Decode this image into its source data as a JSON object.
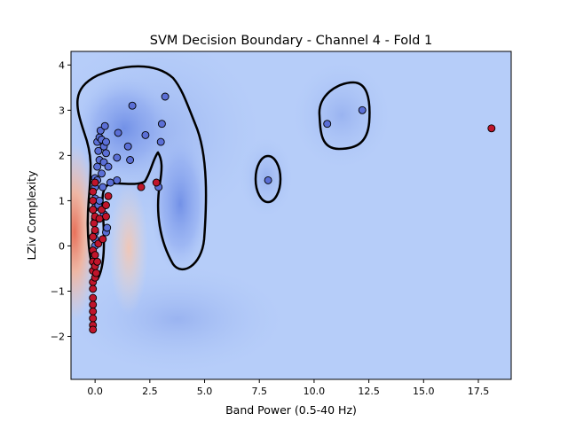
{
  "chart_data": {
    "type": "scatter",
    "title": "SVM Decision Boundary - Channel 4 - Fold 1",
    "xlabel": "Band Power (0.5-40 Hz)",
    "ylabel": "LZiv Complexity",
    "xlim": [
      -1.1,
      19.0
    ],
    "ylim": [
      -2.95,
      4.3
    ],
    "x_ticks": [
      0.0,
      2.5,
      5.0,
      7.5,
      10.0,
      12.5,
      15.0,
      17.5
    ],
    "x_tick_labels": [
      "0.0",
      "2.5",
      "5.0",
      "7.5",
      "10.0",
      "12.5",
      "15.0",
      "17.5"
    ],
    "y_ticks": [
      -2,
      -1,
      0,
      1,
      2,
      3,
      4
    ],
    "y_tick_labels": [
      "−2",
      "−1",
      "0",
      "1",
      "2",
      "3",
      "4"
    ],
    "grid": false,
    "colors": {
      "class_blue": "#5b6fd6",
      "class_red": "#c0152b",
      "background": "#b6cdf9",
      "boundary": "#000000"
    },
    "series": [
      {
        "color": "#5b6fd6",
        "points": [
          [
            0.0,
            1.05
          ],
          [
            0.0,
            0.85
          ],
          [
            0.0,
            0.6
          ],
          [
            0.0,
            0.3
          ],
          [
            0.0,
            0.15
          ],
          [
            0.0,
            0.0
          ],
          [
            0.0,
            1.3
          ],
          [
            0.0,
            1.5
          ],
          [
            0.1,
            1.45
          ],
          [
            0.1,
            1.75
          ],
          [
            0.15,
            0.9
          ],
          [
            0.2,
            1.0
          ],
          [
            0.2,
            1.9
          ],
          [
            0.15,
            2.1
          ],
          [
            0.1,
            2.3
          ],
          [
            0.2,
            2.4
          ],
          [
            0.25,
            2.55
          ],
          [
            0.3,
            2.35
          ],
          [
            0.4,
            2.2
          ],
          [
            0.45,
            2.65
          ],
          [
            0.5,
            2.3
          ],
          [
            0.35,
            1.3
          ],
          [
            0.4,
            0.7
          ],
          [
            0.5,
            0.3
          ],
          [
            0.3,
            1.6
          ],
          [
            0.4,
            1.85
          ],
          [
            0.5,
            2.05
          ],
          [
            0.6,
            1.75
          ],
          [
            0.7,
            1.4
          ],
          [
            0.55,
            0.4
          ],
          [
            1.0,
            1.45
          ],
          [
            1.0,
            1.95
          ],
          [
            1.05,
            2.5
          ],
          [
            1.5,
            2.2
          ],
          [
            1.6,
            1.9
          ],
          [
            1.7,
            3.1
          ],
          [
            2.3,
            2.45
          ],
          [
            2.9,
            1.3
          ],
          [
            3.0,
            2.3
          ],
          [
            3.05,
            2.7
          ],
          [
            3.2,
            3.3
          ],
          [
            7.9,
            1.45
          ],
          [
            10.6,
            2.7
          ],
          [
            12.2,
            3.0
          ]
        ]
      },
      {
        "color": "#c0152b",
        "points": [
          [
            -0.1,
            1.2
          ],
          [
            -0.1,
            1.0
          ],
          [
            -0.1,
            0.8
          ],
          [
            -0.05,
            0.5
          ],
          [
            -0.1,
            0.2
          ],
          [
            -0.1,
            -0.1
          ],
          [
            -0.1,
            -0.35
          ],
          [
            -0.1,
            -0.55
          ],
          [
            -0.1,
            -0.8
          ],
          [
            -0.1,
            -0.95
          ],
          [
            -0.1,
            -1.15
          ],
          [
            -0.1,
            -1.3
          ],
          [
            -0.1,
            -1.45
          ],
          [
            -0.1,
            -1.6
          ],
          [
            -0.1,
            -1.75
          ],
          [
            -0.1,
            -1.85
          ],
          [
            0.0,
            1.4
          ],
          [
            0.0,
            0.65
          ],
          [
            0.0,
            0.35
          ],
          [
            0.0,
            -0.2
          ],
          [
            0.0,
            -0.45
          ],
          [
            0.0,
            -0.7
          ],
          [
            0.05,
            -0.6
          ],
          [
            0.1,
            -0.35
          ],
          [
            0.15,
            0.05
          ],
          [
            0.2,
            0.6
          ],
          [
            0.3,
            0.8
          ],
          [
            0.35,
            0.15
          ],
          [
            0.5,
            0.9
          ],
          [
            0.5,
            0.65
          ],
          [
            0.6,
            1.1
          ],
          [
            2.1,
            1.3
          ],
          [
            2.8,
            1.4
          ],
          [
            18.1,
            2.6
          ]
        ]
      }
    ]
  }
}
